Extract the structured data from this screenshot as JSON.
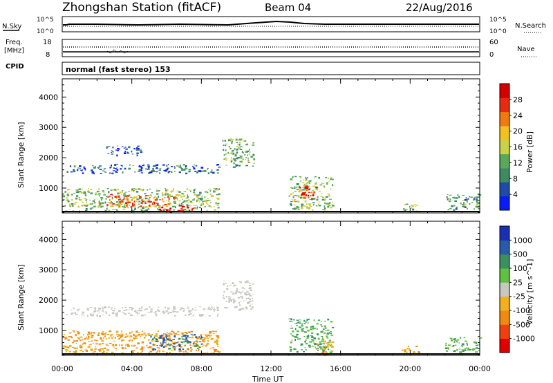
{
  "header": {
    "station": "Zhongshan Station (fitACF)",
    "beam": "Beam 04",
    "date": "22/Aug/2016"
  },
  "status_panels": {
    "nsky_label": "N.Sky",
    "nsky_ticks": [
      "10^5",
      "10^0"
    ],
    "nsearch_label": "N.Search",
    "nsearch_ticks": [
      "10^5",
      "10^0"
    ],
    "freq_label_1": "Freq.",
    "freq_label_2": "[MHz]",
    "freq_ticks": [
      "18",
      "8"
    ],
    "nave_label": "Nave",
    "nave_ticks": [
      "60",
      "0"
    ],
    "cpid_label": "CPID",
    "cpid_text": "normal (fast stereo) 153"
  },
  "colors": {
    "power": [
      "#0a1cf5",
      "#1e4ba8",
      "#3d8a63",
      "#5ca85a",
      "#c8d24a",
      "#f2c020",
      "#f07a10",
      "#e82a12",
      "#d40000"
    ],
    "velocity": [
      "#e00000",
      "#f04010",
      "#f08a10",
      "#f0b020",
      "#c8c8c0",
      "#60c040",
      "#3a9060",
      "#2a5aa8",
      "#1b2fb0"
    ]
  },
  "chart_data": [
    {
      "type": "heatmap",
      "title": "Power",
      "xlabel": "",
      "ylabel": "Slant Range [km]",
      "x_ticks": [
        "00:00",
        "04:00",
        "08:00",
        "12:00",
        "16:00",
        "20:00",
        "00:00"
      ],
      "x_range": [
        0,
        24
      ],
      "y_ticks": [
        "1000",
        "2000",
        "3000",
        "4000"
      ],
      "y_range": [
        180,
        4600
      ],
      "colorbar_label": "Power [dB]",
      "colorbar_ticks": [
        "4",
        "8",
        "12",
        "16",
        "20",
        "24",
        "28"
      ],
      "colorbar_range": [
        0,
        32
      ],
      "regions": [
        {
          "t": [
            0.0,
            9.0
          ],
          "r": [
            250,
            1000
          ],
          "value": 14
        },
        {
          "t": [
            2.5,
            6.5
          ],
          "r": [
            400,
            800
          ],
          "value": 24
        },
        {
          "t": [
            5.5,
            7.5
          ],
          "r": [
            250,
            450
          ],
          "value": 28
        },
        {
          "t": [
            0.2,
            9.0
          ],
          "r": [
            1500,
            1800
          ],
          "value": 6
        },
        {
          "t": [
            2.5,
            4.5
          ],
          "r": [
            2100,
            2400
          ],
          "value": 5
        },
        {
          "t": [
            9.2,
            11.0
          ],
          "r": [
            1700,
            2650
          ],
          "value": 12
        },
        {
          "t": [
            13.0,
            15.5
          ],
          "r": [
            300,
            1400
          ],
          "value": 14
        },
        {
          "t": [
            13.6,
            14.6
          ],
          "r": [
            600,
            1100
          ],
          "value": 28
        },
        {
          "t": [
            19.5,
            20.5
          ],
          "r": [
            250,
            500
          ],
          "value": 14
        },
        {
          "t": [
            22.0,
            24.0
          ],
          "r": [
            300,
            800
          ],
          "value": 10
        }
      ]
    },
    {
      "type": "heatmap",
      "title": "Velocity",
      "xlabel": "Time UT",
      "ylabel": "Slant Range [km]",
      "x_ticks": [
        "00:00",
        "04:00",
        "08:00",
        "12:00",
        "16:00",
        "20:00",
        "00:00"
      ],
      "x_range": [
        0,
        24
      ],
      "y_ticks": [
        "1000",
        "2000",
        "3000",
        "4000"
      ],
      "y_range": [
        180,
        4600
      ],
      "colorbar_label": "Velocity [m s^-1]",
      "colorbar_ticks": [
        "1000",
        "500",
        "100",
        "25",
        "-25",
        "-100",
        "-500",
        "-1000"
      ],
      "regions": [
        {
          "t": [
            0.0,
            9.0
          ],
          "r": [
            250,
            1000
          ],
          "value": -100
        },
        {
          "t": [
            5.0,
            8.0
          ],
          "r": [
            400,
            900
          ],
          "value": 500
        },
        {
          "t": [
            0.2,
            9.0
          ],
          "r": [
            1500,
            1800
          ],
          "value": 0
        },
        {
          "t": [
            9.2,
            11.0
          ],
          "r": [
            1700,
            2650
          ],
          "value": 0
        },
        {
          "t": [
            13.0,
            15.5
          ],
          "r": [
            300,
            1400
          ],
          "value": 100
        },
        {
          "t": [
            14.5,
            15.5
          ],
          "r": [
            200,
            700
          ],
          "value": -100
        },
        {
          "t": [
            19.5,
            20.5
          ],
          "r": [
            250,
            500
          ],
          "value": -100
        },
        {
          "t": [
            22.0,
            24.0
          ],
          "r": [
            300,
            800
          ],
          "value": 100
        }
      ]
    }
  ]
}
